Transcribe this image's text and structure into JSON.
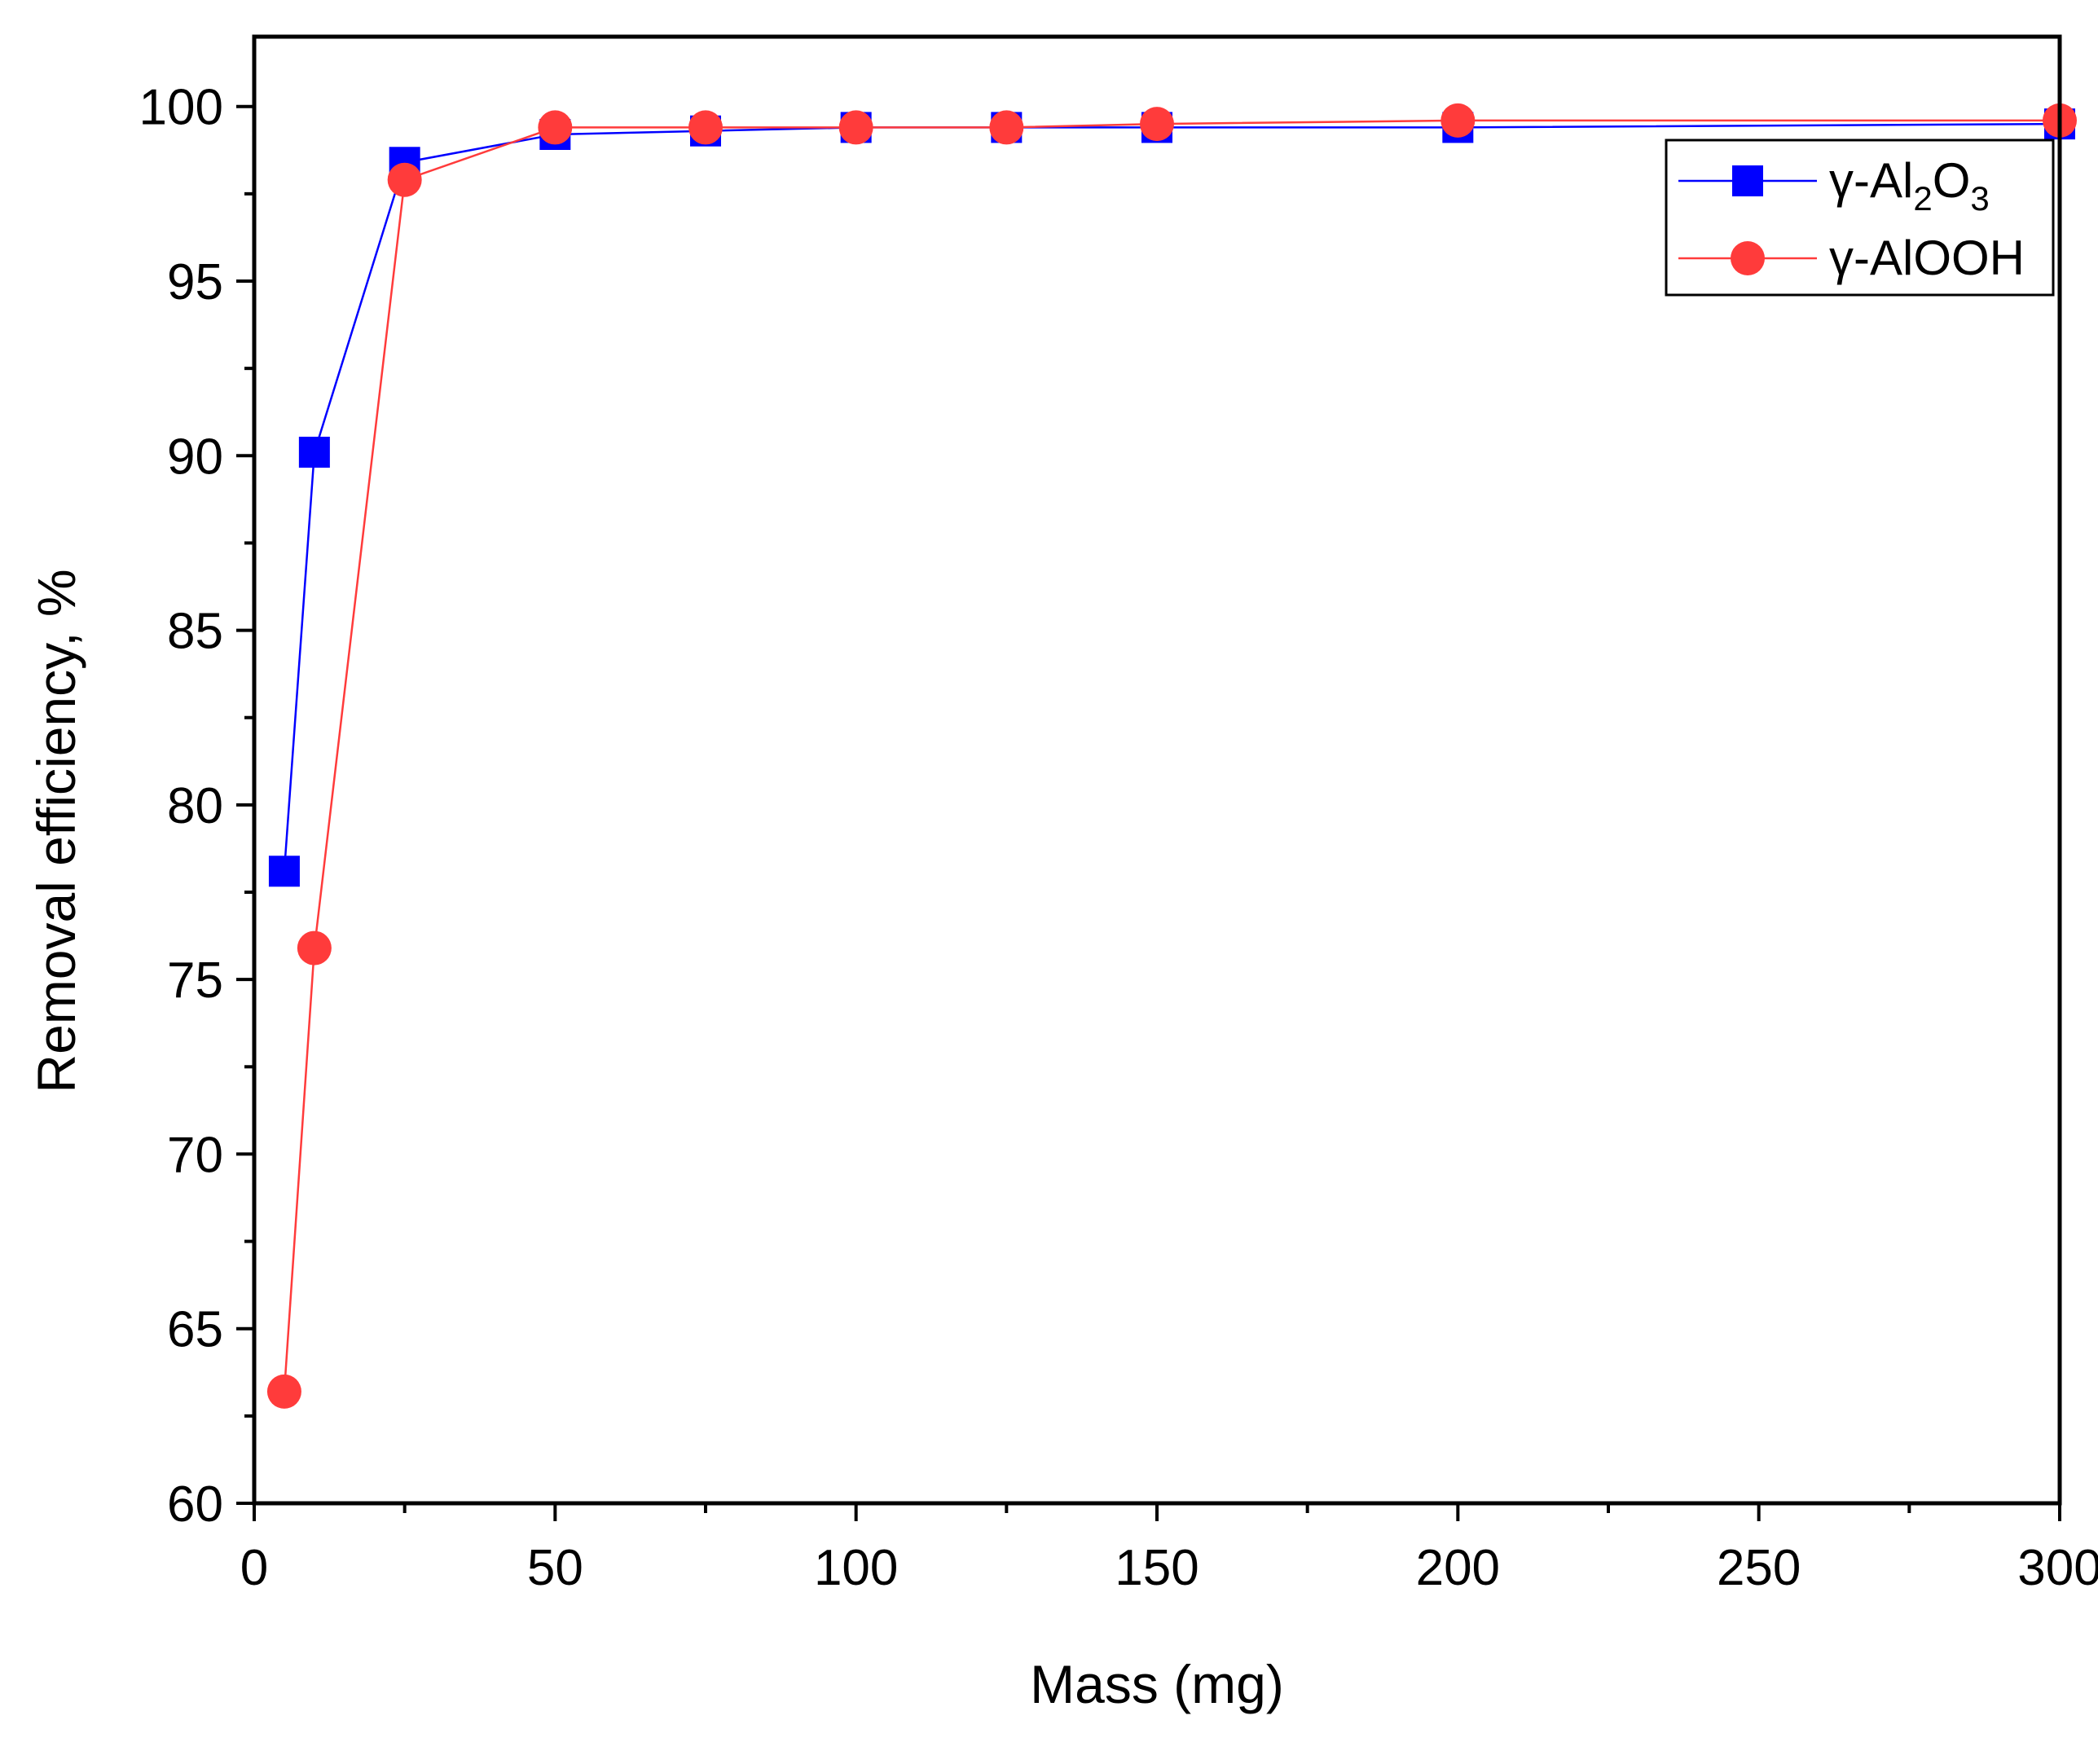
{
  "chart_data": {
    "type": "line",
    "title": "",
    "xlabel": "Mass (mg)",
    "ylabel": "Removal efficiency, %",
    "xlim": [
      0,
      300
    ],
    "ylim": [
      60,
      102
    ],
    "x_ticks": [
      0,
      50,
      100,
      150,
      200,
      250,
      300
    ],
    "x_tick_labels": [
      "0",
      "50",
      "100",
      "150",
      "200",
      "250",
      "300"
    ],
    "y_ticks": [
      60,
      65,
      70,
      75,
      80,
      85,
      90,
      95,
      100
    ],
    "y_tick_labels": [
      "60",
      "65",
      "70",
      "75",
      "80",
      "85",
      "90",
      "95",
      "100"
    ],
    "grid": false,
    "legend_position": "top-right",
    "series": [
      {
        "name": "γ-Al2O3",
        "legend_parts": {
          "base": "γ-Al",
          "sub1": "2",
          "mid": "O",
          "sub2": "3"
        },
        "color": "#0000ff",
        "marker": "square",
        "x": [
          5,
          10,
          25,
          50,
          75,
          100,
          125,
          150,
          200,
          300
        ],
        "y": [
          78.1,
          90.1,
          98.4,
          99.2,
          99.3,
          99.4,
          99.4,
          99.4,
          99.4,
          99.5
        ]
      },
      {
        "name": "γ-AlOOH",
        "legend_parts": {
          "base": "γ-AlOOH",
          "sub1": "",
          "mid": "",
          "sub2": ""
        },
        "color": "#ff3b3b",
        "marker": "circle",
        "x": [
          5,
          10,
          25,
          50,
          75,
          100,
          125,
          150,
          200,
          300
        ],
        "y": [
          63.2,
          75.9,
          97.9,
          99.4,
          99.4,
          99.4,
          99.4,
          99.5,
          99.6,
          99.6
        ]
      }
    ]
  }
}
